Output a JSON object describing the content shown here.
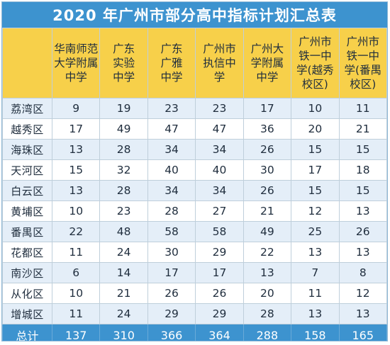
{
  "title": "2020 年广州市部分高中指标计划汇总表",
  "columns": [
    {
      "lines": [
        "华南师范",
        "大学附属",
        "中学"
      ]
    },
    {
      "lines": [
        "广东",
        "实验",
        "中学"
      ]
    },
    {
      "lines": [
        "广东",
        "广雅",
        "中学"
      ]
    },
    {
      "lines": [
        "广州市",
        "执信中",
        "学"
      ]
    },
    {
      "lines": [
        "广州大",
        "学附属",
        "中学"
      ]
    },
    {
      "lines": [
        "广州市",
        "铁一中",
        "学(越秀",
        "校区)"
      ]
    },
    {
      "lines": [
        "广州市",
        "铁一中",
        "学(番禺",
        "校区)"
      ]
    }
  ],
  "rows": [
    {
      "district": "荔湾区",
      "values": [
        "9",
        "19",
        "23",
        "23",
        "17",
        "10",
        "11"
      ]
    },
    {
      "district": "越秀区",
      "values": [
        "17",
        "49",
        "47",
        "47",
        "36",
        "20",
        "21"
      ]
    },
    {
      "district": "海珠区",
      "values": [
        "13",
        "28",
        "34",
        "34",
        "26",
        "15",
        "15"
      ]
    },
    {
      "district": "天河区",
      "values": [
        "15",
        "32",
        "40",
        "40",
        "30",
        "17",
        "18"
      ]
    },
    {
      "district": "白云区",
      "values": [
        "13",
        "28",
        "34",
        "34",
        "26",
        "15",
        "15"
      ]
    },
    {
      "district": "黄埔区",
      "values": [
        "10",
        "23",
        "28",
        "27",
        "21",
        "12",
        "13"
      ]
    },
    {
      "district": "番禺区",
      "values": [
        "22",
        "48",
        "58",
        "58",
        "49",
        "25",
        "26"
      ]
    },
    {
      "district": "花都区",
      "values": [
        "11",
        "24",
        "30",
        "29",
        "22",
        "13",
        "13"
      ]
    },
    {
      "district": "南沙区",
      "values": [
        "6",
        "14",
        "17",
        "17",
        "13",
        "7",
        "8"
      ]
    },
    {
      "district": "从化区",
      "values": [
        "10",
        "21",
        "26",
        "26",
        "20",
        "11",
        "12"
      ]
    },
    {
      "district": "增城区",
      "values": [
        "11",
        "24",
        "29",
        "29",
        "28",
        "13",
        "13"
      ]
    }
  ],
  "total": {
    "label": "总计",
    "values": [
      "137",
      "310",
      "366",
      "364",
      "288",
      "158",
      "165"
    ]
  },
  "colors": {
    "title_bg": "#3d93cf",
    "header_bg": "#f7d04a",
    "row_alt_bg": "#e4eef8",
    "total_bg": "#3d93cf"
  }
}
